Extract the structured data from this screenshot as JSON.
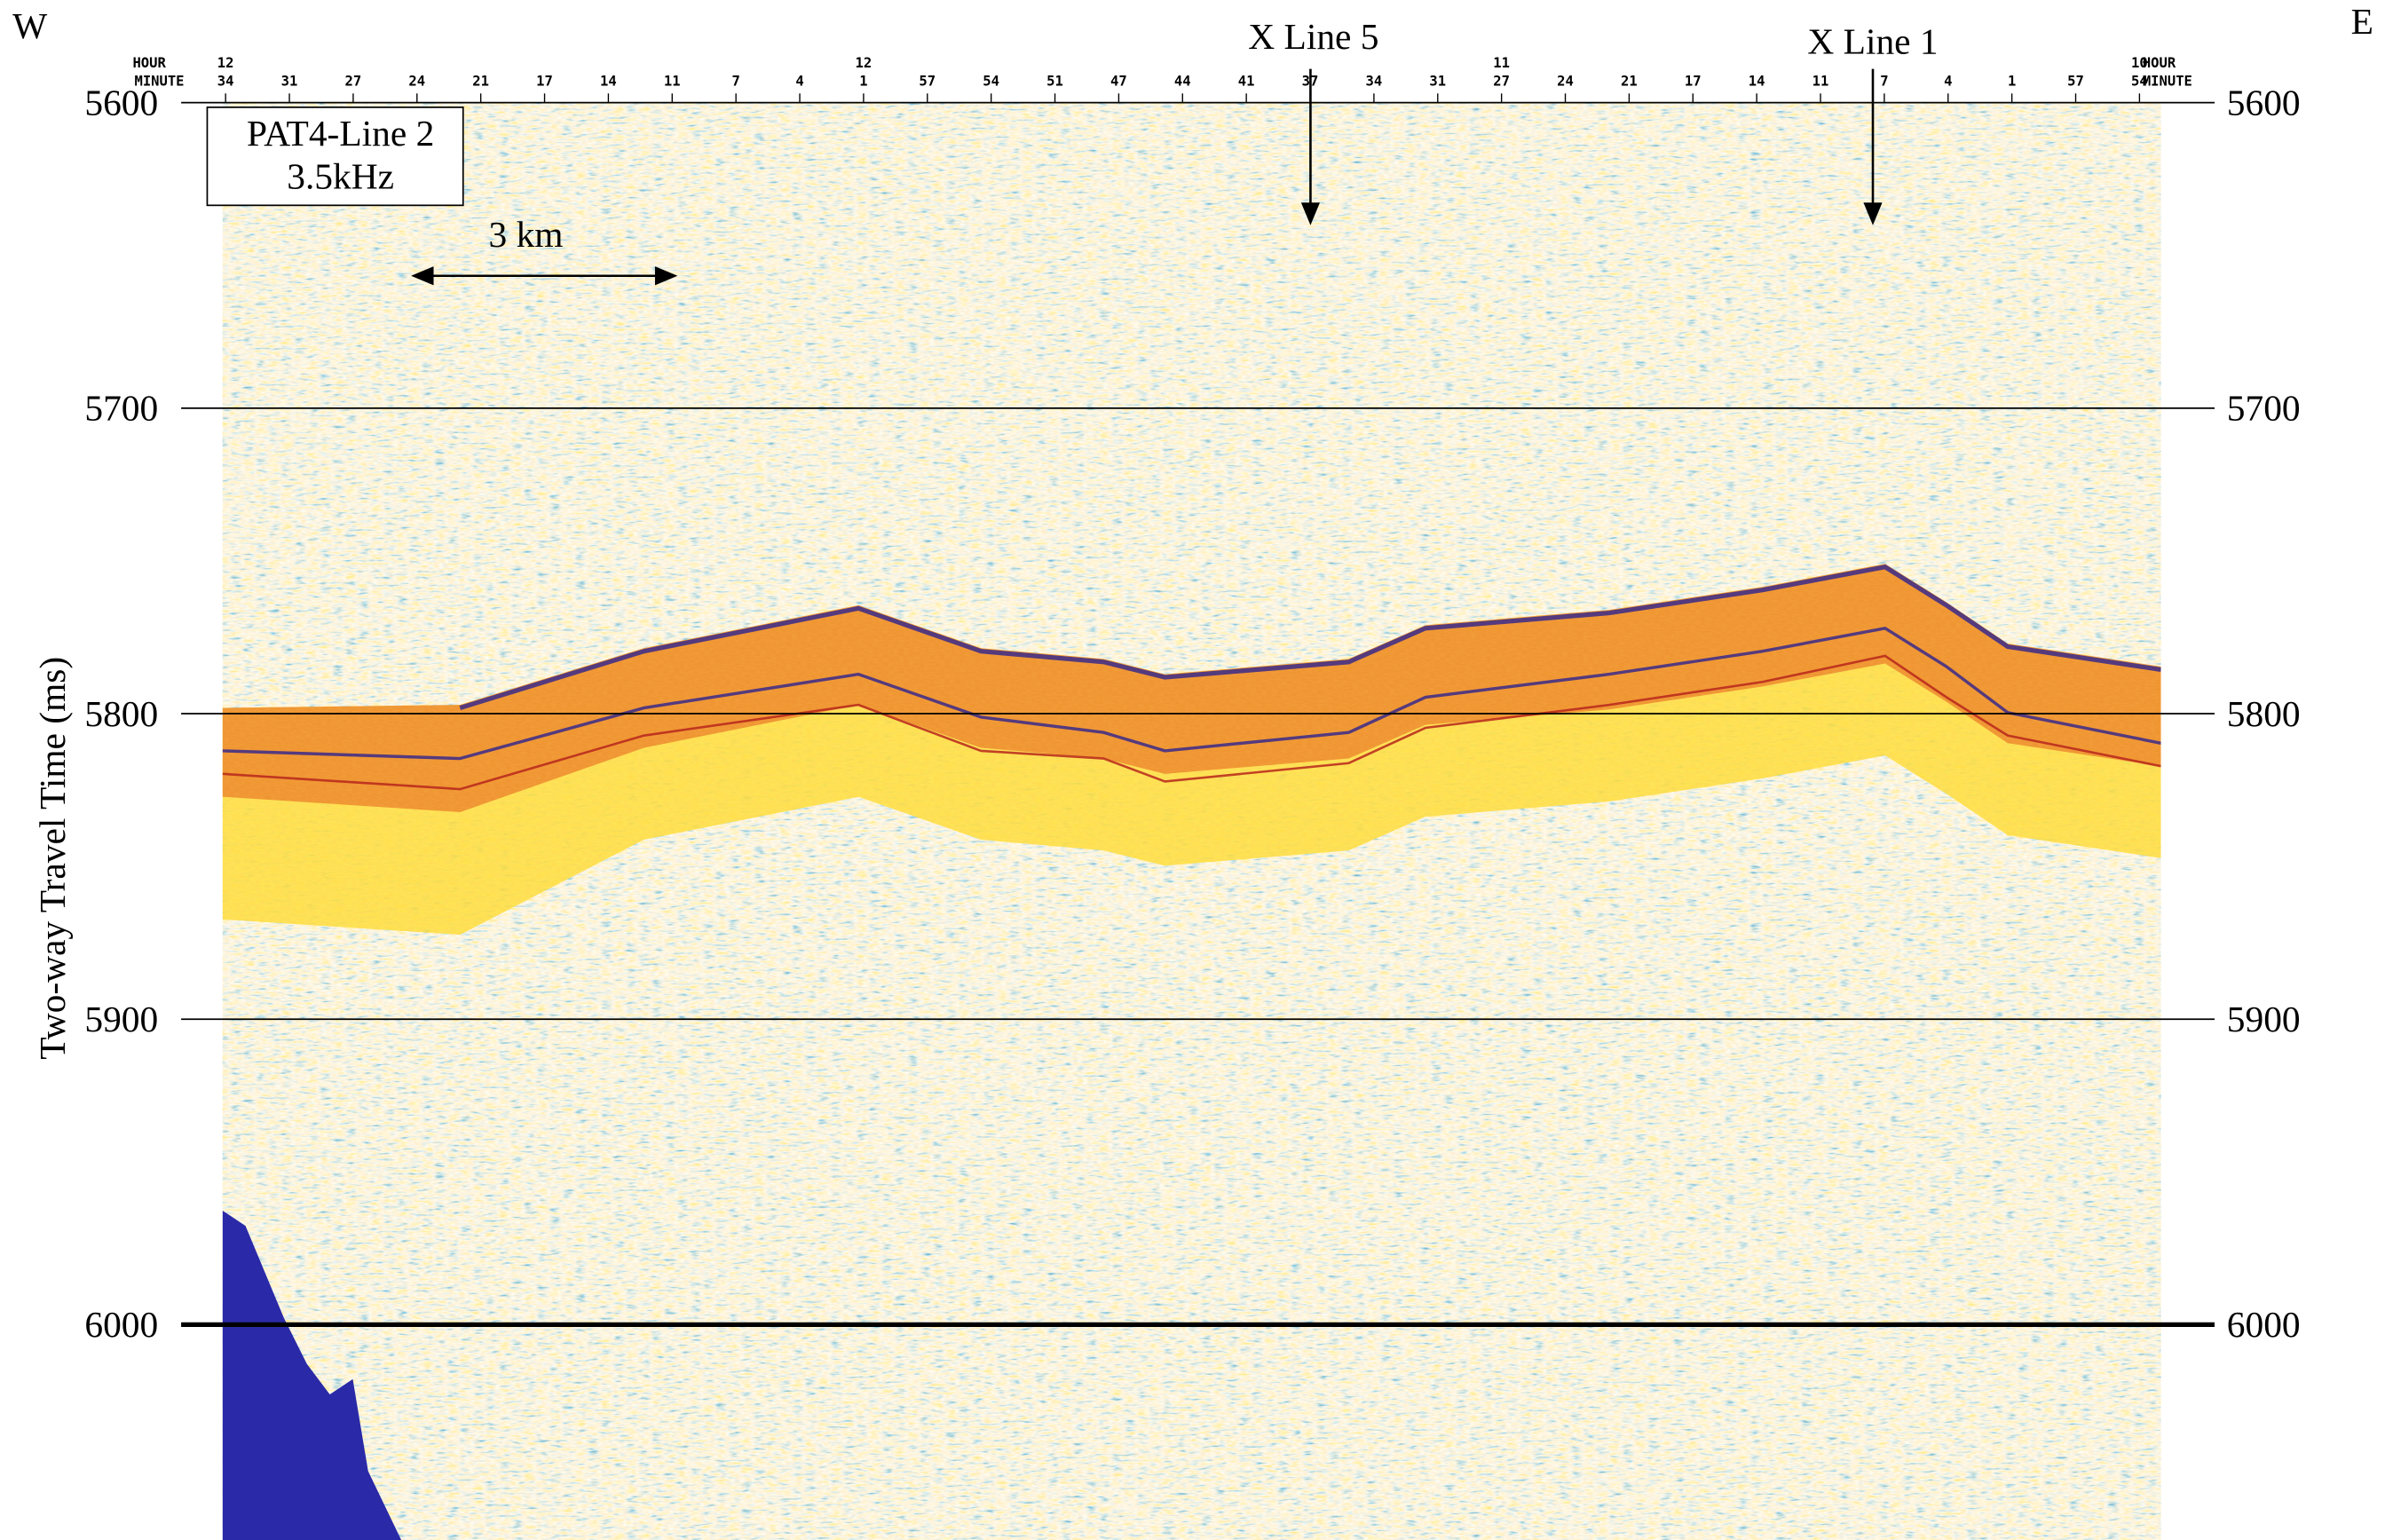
{
  "corners": {
    "left": "W",
    "right": "E"
  },
  "title_box": {
    "line1": "PAT4-Line 2",
    "line2": "3.5kHz"
  },
  "scale_bar": "3 km",
  "cross_lines": [
    "X Line 5",
    "X Line 1"
  ],
  "y_axis": {
    "label": "Two-way Travel Time (ms)",
    "ylim": [
      5600,
      6074
    ],
    "ticks": [
      5600,
      5700,
      5800,
      5900,
      6000
    ]
  },
  "time_axis": {
    "hour_label": "HOUR",
    "minute_label": "MINUTE",
    "hours": [
      "12",
      null,
      null,
      null,
      null,
      null,
      null,
      null,
      null,
      null,
      "12",
      null,
      null,
      null,
      null,
      null,
      null,
      null,
      null,
      null,
      "11",
      null,
      null,
      null,
      null,
      null,
      null,
      null,
      null,
      null,
      "10"
    ],
    "minutes": [
      "34",
      "31",
      "27",
      "24",
      "21",
      "17",
      "14",
      "11",
      "7",
      "4",
      "1",
      "57",
      "54",
      "51",
      "47",
      "44",
      "41",
      "37",
      "34",
      "31",
      "27",
      "24",
      "21",
      "17",
      "14",
      "11",
      "7",
      "4",
      "1",
      "57",
      "54"
    ]
  }
}
